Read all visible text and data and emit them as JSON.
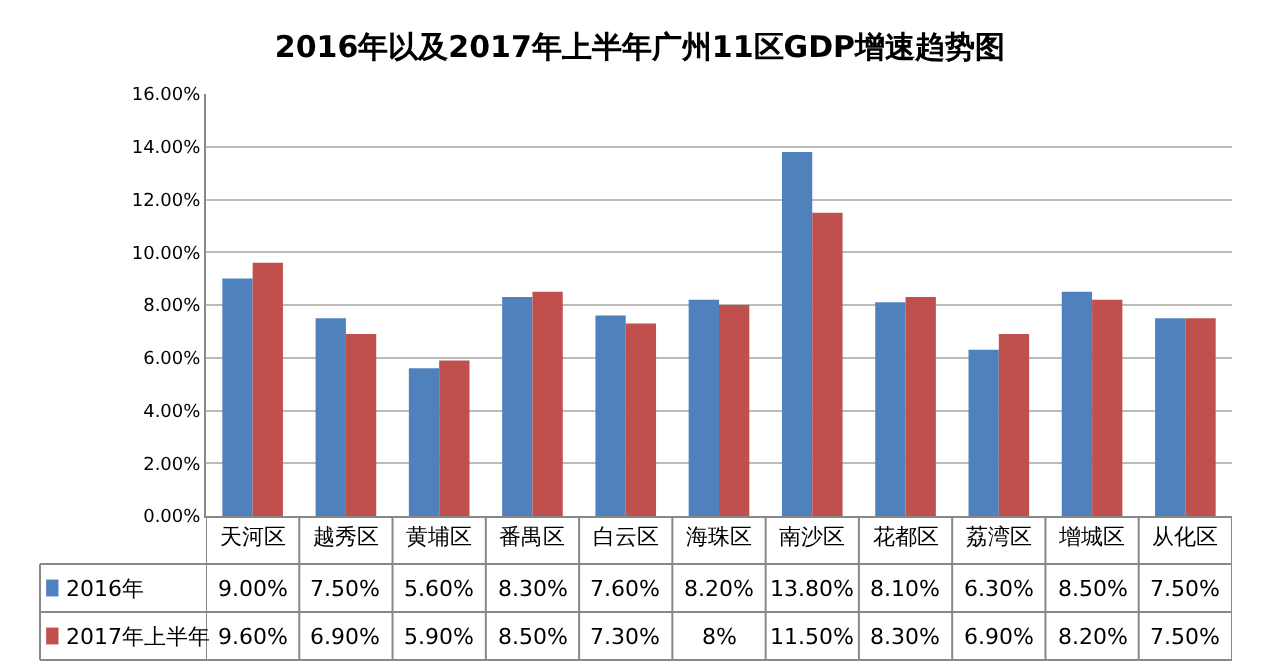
{
  "chart_data": {
    "type": "bar",
    "title": "2016年以及2017年上半年广州11区GDP增速趋势图",
    "categories": [
      "天河区",
      "越秀区",
      "黄埔区",
      "番禺区",
      "白云区",
      "海珠区",
      "南沙区",
      "花都区",
      "荔湾区",
      "增城区",
      "从化区"
    ],
    "series": [
      {
        "name": "2016年",
        "color": "#4f81bd",
        "values": [
          9.0,
          7.5,
          5.6,
          8.3,
          7.6,
          8.2,
          13.8,
          8.1,
          6.3,
          8.5,
          7.5
        ],
        "value_labels": [
          "9.00%",
          "7.50%",
          "5.60%",
          "8.30%",
          "7.60%",
          "8.20%",
          "13.80%",
          "8.10%",
          "6.30%",
          "8.50%",
          "7.50%"
        ]
      },
      {
        "name": "2017年上半年",
        "color": "#c0504d",
        "values": [
          9.6,
          6.9,
          5.9,
          8.5,
          7.3,
          8.0,
          11.5,
          8.3,
          6.9,
          8.2,
          7.5
        ],
        "value_labels": [
          "9.60%",
          "6.90%",
          "5.90%",
          "8.50%",
          "7.30%",
          "8%",
          "11.50%",
          "8.30%",
          "6.90%",
          "8.20%",
          "7.50%"
        ]
      }
    ],
    "ylim": [
      0,
      16
    ],
    "yticks": [
      {
        "value": 0,
        "label": "0.00%"
      },
      {
        "value": 2,
        "label": "2.00%"
      },
      {
        "value": 4,
        "label": "4.00%"
      },
      {
        "value": 6,
        "label": "6.00%"
      },
      {
        "value": 8,
        "label": "8.00%"
      },
      {
        "value": 10,
        "label": "10.00%"
      },
      {
        "value": 12,
        "label": "12.00%"
      },
      {
        "value": 14,
        "label": "14.00%"
      },
      {
        "value": 16,
        "label": "16.00%"
      }
    ],
    "grid": "y",
    "legend": "bottom left"
  }
}
